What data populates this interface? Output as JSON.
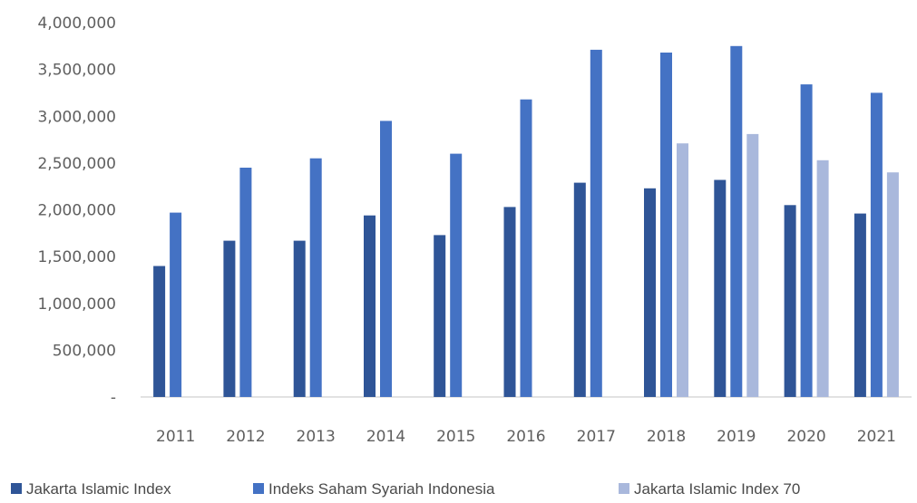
{
  "chart_data": {
    "type": "bar",
    "title": "",
    "xlabel": "",
    "ylabel": "",
    "categories": [
      "2011",
      "2012",
      "2013",
      "2014",
      "2015",
      "2016",
      "2017",
      "2018",
      "2019",
      "2020",
      "2021"
    ],
    "ylim": [
      0,
      4000000
    ],
    "yticks": [
      0,
      500000,
      1000000,
      1500000,
      2000000,
      2500000,
      3000000,
      3500000,
      4000000
    ],
    "ytick_labels": [
      "-",
      "500,000",
      "1,000,000",
      "1,500,000",
      "2,000,000",
      "2,500,000",
      "3,000,000",
      "3,500,000",
      "4,000,000"
    ],
    "grid": false,
    "legend_position": "bottom",
    "series": [
      {
        "name": "Jakarta Islamic Index",
        "color": "#2f5597",
        "values": [
          1400000,
          1670000,
          1670000,
          1940000,
          1730000,
          2030000,
          2290000,
          2230000,
          2320000,
          2050000,
          1960000
        ]
      },
      {
        "name": "Indeks Saham Syariah Indonesia",
        "color": "#4472c4",
        "values": [
          1970000,
          2450000,
          2550000,
          2950000,
          2600000,
          3180000,
          3710000,
          3680000,
          3750000,
          3340000,
          3250000
        ]
      },
      {
        "name": "Jakarta Islamic Index 70",
        "color": "#a9b8dc",
        "values": [
          null,
          null,
          null,
          null,
          null,
          null,
          null,
          2710000,
          2810000,
          2530000,
          2400000
        ]
      }
    ]
  }
}
